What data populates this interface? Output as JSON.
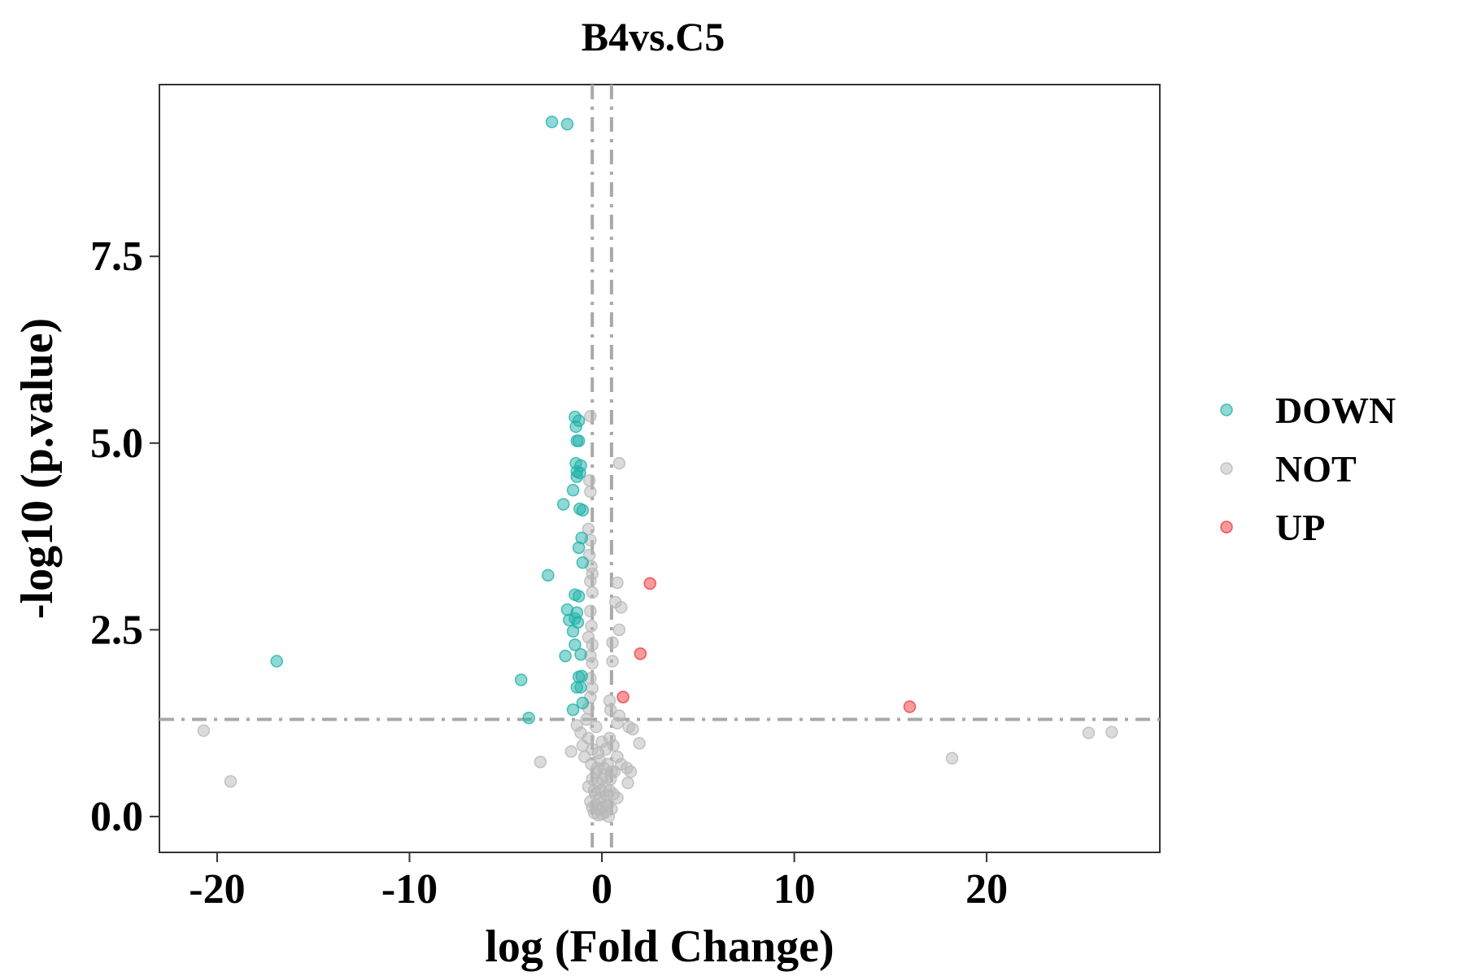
{
  "colors": {
    "DOWN": "#20B2AA",
    "NOT": "#B8B8B8",
    "UP": "#F0363A",
    "threshold": "#A9A9A9",
    "frame": "#333333"
  },
  "chart_data": {
    "type": "scatter",
    "title": "B4vs.C5",
    "xlabel": "log (Fold Change)",
    "ylabel": "-log10 (p.value)",
    "xlim": [
      -23,
      29
    ],
    "ylim": [
      -0.48,
      9.8
    ],
    "xticks": [
      -20,
      -10,
      0,
      10,
      20
    ],
    "xtick_labels": [
      "-20",
      "-10",
      "0",
      "10",
      "20"
    ],
    "yticks": [
      0,
      2.5,
      5,
      7.5
    ],
    "ytick_labels": [
      "0.0",
      "2.5",
      "5.0",
      "7.5"
    ],
    "thresholds": {
      "x": [
        -0.5,
        0.5
      ],
      "y": 1.3
    },
    "grid": false,
    "legend": {
      "placement": "right",
      "entries": [
        "DOWN",
        "NOT",
        "UP"
      ]
    },
    "series": [
      {
        "name": "DOWN",
        "points": [
          [
            -2.6,
            9.3
          ],
          [
            -1.8,
            9.27
          ],
          [
            -1.4,
            5.35
          ],
          [
            -1.2,
            5.3
          ],
          [
            -1.35,
            5.22
          ],
          [
            -1.3,
            5.03
          ],
          [
            -1.2,
            5.03
          ],
          [
            -1.35,
            4.73
          ],
          [
            -1.1,
            4.7
          ],
          [
            -1.3,
            4.62
          ],
          [
            -1.15,
            4.6
          ],
          [
            -1.3,
            4.55
          ],
          [
            -1.5,
            4.37
          ],
          [
            -2.0,
            4.18
          ],
          [
            -1.15,
            4.12
          ],
          [
            -1.0,
            4.1
          ],
          [
            -1.05,
            3.73
          ],
          [
            -1.2,
            3.6
          ],
          [
            -1.0,
            3.4
          ],
          [
            -2.8,
            3.23
          ],
          [
            -1.4,
            2.97
          ],
          [
            -1.2,
            2.95
          ],
          [
            -1.8,
            2.77
          ],
          [
            -1.3,
            2.73
          ],
          [
            -1.4,
            2.65
          ],
          [
            -1.7,
            2.63
          ],
          [
            -1.25,
            2.6
          ],
          [
            -1.5,
            2.48
          ],
          [
            -1.4,
            2.3
          ],
          [
            -1.1,
            2.17
          ],
          [
            -1.9,
            2.15
          ],
          [
            -16.9,
            2.08
          ],
          [
            -1.05,
            1.88
          ],
          [
            -1.2,
            1.87
          ],
          [
            -4.2,
            1.83
          ],
          [
            -1.3,
            1.73
          ],
          [
            -1.1,
            1.73
          ],
          [
            -1.0,
            1.52
          ],
          [
            -1.5,
            1.43
          ],
          [
            -3.8,
            1.32
          ]
        ]
      },
      {
        "name": "NOT",
        "points": [
          [
            -20.7,
            1.15
          ],
          [
            -19.3,
            0.47
          ],
          [
            -3.2,
            0.73
          ],
          [
            -0.6,
            5.36
          ],
          [
            0.9,
            4.73
          ],
          [
            -0.65,
            4.5
          ],
          [
            -0.6,
            4.35
          ],
          [
            -0.7,
            3.85
          ],
          [
            -0.6,
            3.7
          ],
          [
            -0.65,
            3.5
          ],
          [
            -0.55,
            3.35
          ],
          [
            -0.5,
            3.25
          ],
          [
            -0.6,
            3.15
          ],
          [
            0.8,
            3.13
          ],
          [
            -0.5,
            3.0
          ],
          [
            0.7,
            2.87
          ],
          [
            1.0,
            2.8
          ],
          [
            -0.6,
            2.75
          ],
          [
            -0.55,
            2.55
          ],
          [
            0.9,
            2.5
          ],
          [
            -0.7,
            2.4
          ],
          [
            -0.5,
            2.3
          ],
          [
            0.55,
            2.33
          ],
          [
            -0.6,
            2.15
          ],
          [
            -0.5,
            2.05
          ],
          [
            0.55,
            2.08
          ],
          [
            -0.6,
            1.85
          ],
          [
            -0.5,
            1.72
          ],
          [
            -0.6,
            1.6
          ],
          [
            0.4,
            1.55
          ],
          [
            0.45,
            1.43
          ],
          [
            0.9,
            1.35
          ],
          [
            0.8,
            1.25
          ],
          [
            -0.7,
            1.45
          ],
          [
            -0.8,
            1.3
          ],
          [
            -1.3,
            1.22
          ],
          [
            -1.1,
            1.12
          ],
          [
            -1.6,
            0.87
          ],
          [
            -1.0,
            0.95
          ],
          [
            -0.9,
            0.8
          ],
          [
            -0.7,
            1.05
          ],
          [
            -0.5,
            0.9
          ],
          [
            -0.3,
            1.2
          ],
          [
            -0.2,
            0.85
          ],
          [
            0.0,
            1.0
          ],
          [
            0.2,
            0.9
          ],
          [
            0.4,
            1.05
          ],
          [
            0.6,
            0.95
          ],
          [
            0.8,
            0.8
          ],
          [
            1.0,
            0.7
          ],
          [
            1.3,
            0.65
          ],
          [
            1.5,
            0.6
          ],
          [
            1.6,
            1.17
          ],
          [
            1.4,
            1.2
          ],
          [
            1.95,
            0.98
          ],
          [
            1.35,
            0.45
          ],
          [
            0.5,
            0.6
          ],
          [
            0.3,
            0.7
          ],
          [
            0.1,
            0.65
          ],
          [
            -0.1,
            0.75
          ],
          [
            -0.3,
            0.6
          ],
          [
            -0.5,
            0.5
          ],
          [
            -0.7,
            0.4
          ],
          [
            -0.4,
            0.35
          ],
          [
            -0.2,
            0.45
          ],
          [
            0.0,
            0.5
          ],
          [
            0.2,
            0.4
          ],
          [
            0.4,
            0.35
          ],
          [
            0.6,
            0.3
          ],
          [
            0.8,
            0.25
          ],
          [
            -0.6,
            0.2
          ],
          [
            -0.3,
            0.15
          ],
          [
            -0.1,
            0.25
          ],
          [
            0.1,
            0.2
          ],
          [
            0.3,
            0.15
          ],
          [
            0.5,
            0.1
          ],
          [
            -0.4,
            0.05
          ],
          [
            -0.2,
            0.02
          ],
          [
            0.0,
            0.03
          ],
          [
            0.2,
            0.06
          ],
          [
            0.35,
            0.0
          ],
          [
            -0.5,
            0.12
          ],
          [
            -0.15,
            0.1
          ],
          [
            0.05,
            0.12
          ],
          [
            0.25,
            0.28
          ],
          [
            -0.35,
            0.3
          ],
          [
            0.15,
            0.55
          ],
          [
            -0.25,
            0.65
          ],
          [
            -0.05,
            0.35
          ],
          [
            0.45,
            0.5
          ],
          [
            -0.55,
            0.7
          ],
          [
            0.65,
            0.6
          ],
          [
            18.2,
            0.78
          ],
          [
            25.3,
            1.12
          ],
          [
            26.5,
            1.13
          ]
        ]
      },
      {
        "name": "UP",
        "points": [
          [
            2.5,
            3.12
          ],
          [
            2.0,
            2.18
          ],
          [
            1.1,
            1.6
          ],
          [
            16.0,
            1.47
          ]
        ]
      }
    ]
  }
}
